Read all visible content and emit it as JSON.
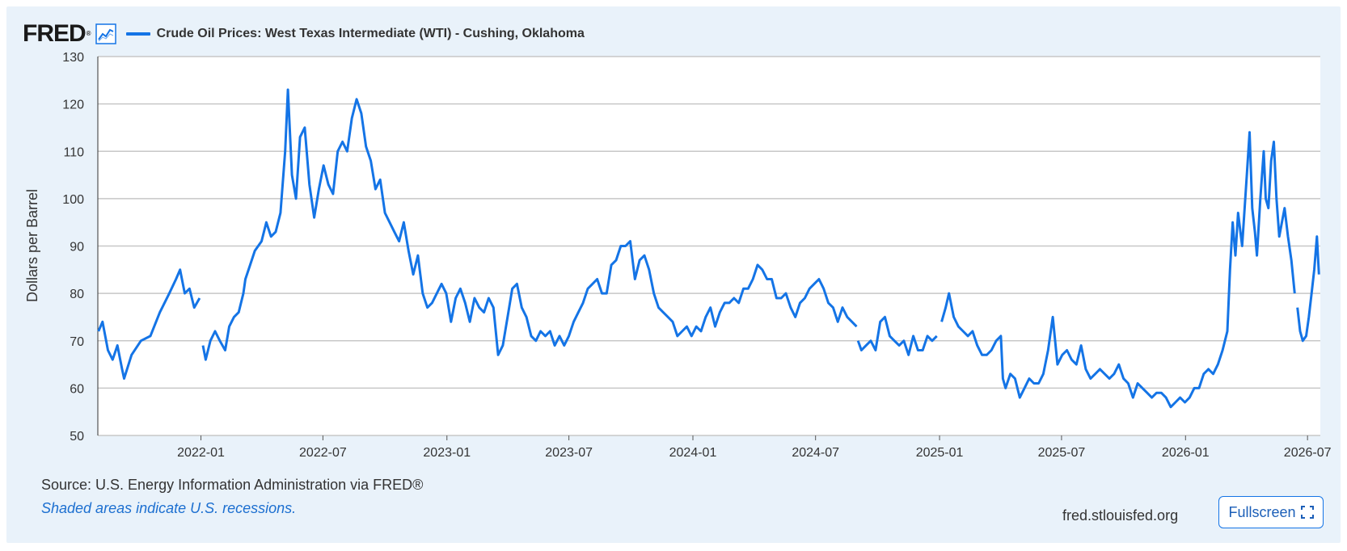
{
  "header": {
    "logo_text": "FRED",
    "logo_mark": "®",
    "graph_icon": "line-graph-icon",
    "series_title": "Crude Oil Prices: West Texas Intermediate (WTI) - Cushing, Oklahoma",
    "series_color": "#1474e6"
  },
  "footer": {
    "source": "Source: U.S. Energy Information Administration via FRED®",
    "recession_note": "Shaded areas indicate U.S. recessions.",
    "site": "fred.stlouisfed.org",
    "fullscreen_label": "Fullscreen",
    "fullscreen_icon": "expand-icon",
    "link_color": "#1c6fd0"
  },
  "chart_data": {
    "type": "line",
    "title": "Crude Oil Prices: West Texas Intermediate (WTI) - Cushing, Oklahoma",
    "xlabel": "",
    "ylabel": "Dollars per Barrel",
    "ylim": [
      50,
      130
    ],
    "xlim": [
      "2021-08-01",
      "2026-07-20"
    ],
    "yticks": [
      50,
      60,
      70,
      80,
      90,
      100,
      110,
      120,
      130
    ],
    "xticks": [
      "2022-01",
      "2022-07",
      "2023-01",
      "2023-07",
      "2024-01",
      "2024-07",
      "2025-01",
      "2025-07",
      "2026-01",
      "2026-07"
    ],
    "grid": true,
    "legend": "top-left",
    "series": [
      {
        "name": "Crude Oil Prices: West Texas Intermediate (WTI) - Cushing, Oklahoma",
        "color": "#1474e6",
        "points": [
          [
            "2021-08-02",
            72
          ],
          [
            "2021-08-08",
            74
          ],
          [
            "2021-08-16",
            68
          ],
          [
            "2021-08-23",
            66
          ],
          [
            "2021-08-30",
            69
          ],
          [
            "2021-09-06",
            64
          ],
          [
            "2021-09-09",
            62
          ],
          [
            "2021-09-20",
            67
          ],
          [
            "2021-10-04",
            70
          ],
          [
            "2021-10-18",
            71
          ],
          [
            "2021-11-01",
            76
          ],
          [
            "2021-11-15",
            80
          ],
          [
            "2021-11-25",
            83
          ],
          [
            "2021-12-01",
            85
          ],
          [
            "2021-12-08",
            80
          ],
          [
            "2021-12-15",
            81
          ],
          [
            "2021-12-22",
            77
          ],
          [
            "2021-12-30",
            79
          ],
          [
            null,
            null
          ],
          [
            "2022-01-04",
            69
          ],
          [
            "2022-01-08",
            66
          ],
          [
            "2022-01-15",
            70
          ],
          [
            "2022-01-22",
            72
          ],
          [
            "2022-01-29",
            70
          ],
          [
            "2022-02-06",
            68
          ],
          [
            "2022-02-12",
            73
          ],
          [
            "2022-02-19",
            75
          ],
          [
            "2022-02-26",
            76
          ],
          [
            "2022-03-05",
            80
          ],
          [
            "2022-03-08",
            83
          ],
          [
            "2022-03-15",
            86
          ],
          [
            "2022-03-22",
            89
          ],
          [
            "2022-04-01",
            91
          ],
          [
            "2022-04-08",
            95
          ],
          [
            "2022-04-15",
            92
          ],
          [
            "2022-04-22",
            93
          ],
          [
            "2022-04-29",
            97
          ],
          [
            "2022-05-06",
            110
          ],
          [
            "2022-05-10",
            123
          ],
          [
            "2022-05-16",
            105
          ],
          [
            "2022-05-22",
            100
          ],
          [
            "2022-05-28",
            113
          ],
          [
            "2022-06-04",
            115
          ],
          [
            "2022-06-11",
            103
          ],
          [
            "2022-06-18",
            96
          ],
          [
            "2022-06-25",
            102
          ],
          [
            "2022-07-02",
            107
          ],
          [
            "2022-07-09",
            103
          ],
          [
            "2022-07-16",
            101
          ],
          [
            "2022-07-23",
            110
          ],
          [
            "2022-07-30",
            112
          ],
          [
            "2022-08-06",
            110
          ],
          [
            "2022-08-13",
            117
          ],
          [
            "2022-08-20",
            121
          ],
          [
            "2022-08-27",
            118
          ],
          [
            "2022-09-03",
            111
          ],
          [
            "2022-09-10",
            108
          ],
          [
            "2022-09-17",
            102
          ],
          [
            "2022-09-24",
            104
          ],
          [
            "2022-10-01",
            97
          ],
          [
            "2022-10-08",
            95
          ],
          [
            "2022-10-15",
            93
          ],
          [
            "2022-10-22",
            91
          ],
          [
            "2022-10-29",
            95
          ],
          [
            "2022-11-05",
            89
          ],
          [
            "2022-11-12",
            84
          ],
          [
            "2022-11-19",
            88
          ],
          [
            "2022-11-26",
            80
          ],
          [
            "2022-12-03",
            77
          ],
          [
            "2022-12-10",
            78
          ],
          [
            "2022-12-17",
            80
          ],
          [
            "2022-12-24",
            82
          ],
          [
            "2022-12-31",
            80
          ],
          [
            "2023-01-07",
            74
          ],
          [
            "2023-01-14",
            79
          ],
          [
            "2023-01-21",
            81
          ],
          [
            "2023-01-28",
            78
          ],
          [
            "2023-02-04",
            74
          ],
          [
            "2023-02-11",
            79
          ],
          [
            "2023-02-18",
            77
          ],
          [
            "2023-02-25",
            76
          ],
          [
            "2023-03-04",
            79
          ],
          [
            "2023-03-11",
            77
          ],
          [
            "2023-03-18",
            67
          ],
          [
            "2023-03-25",
            69
          ],
          [
            "2023-04-01",
            75
          ],
          [
            "2023-04-08",
            81
          ],
          [
            "2023-04-15",
            82
          ],
          [
            "2023-04-22",
            77
          ],
          [
            "2023-04-29",
            75
          ],
          [
            "2023-05-06",
            71
          ],
          [
            "2023-05-13",
            70
          ],
          [
            "2023-05-20",
            72
          ],
          [
            "2023-05-27",
            71
          ],
          [
            "2023-06-03",
            72
          ],
          [
            "2023-06-10",
            69
          ],
          [
            "2023-06-17",
            71
          ],
          [
            "2023-06-24",
            69
          ],
          [
            "2023-07-01",
            71
          ],
          [
            "2023-07-08",
            74
          ],
          [
            "2023-07-15",
            76
          ],
          [
            "2023-07-22",
            78
          ],
          [
            "2023-07-29",
            81
          ],
          [
            "2023-08-05",
            82
          ],
          [
            "2023-08-12",
            83
          ],
          [
            "2023-08-19",
            80
          ],
          [
            "2023-08-26",
            80
          ],
          [
            "2023-09-02",
            86
          ],
          [
            "2023-09-09",
            87
          ],
          [
            "2023-09-16",
            90
          ],
          [
            "2023-09-23",
            90
          ],
          [
            "2023-09-30",
            91
          ],
          [
            "2023-10-07",
            83
          ],
          [
            "2023-10-14",
            87
          ],
          [
            "2023-10-21",
            88
          ],
          [
            "2023-10-28",
            85
          ],
          [
            "2023-11-04",
            80
          ],
          [
            "2023-11-11",
            77
          ],
          [
            "2023-11-18",
            76
          ],
          [
            "2023-11-25",
            75
          ],
          [
            "2023-12-02",
            74
          ],
          [
            "2023-12-09",
            71
          ],
          [
            "2023-12-16",
            72
          ],
          [
            "2023-12-23",
            73
          ],
          [
            "2023-12-30",
            71
          ],
          [
            "2024-01-06",
            73
          ],
          [
            "2024-01-13",
            72
          ],
          [
            "2024-01-20",
            75
          ],
          [
            "2024-01-27",
            77
          ],
          [
            "2024-02-03",
            73
          ],
          [
            "2024-02-10",
            76
          ],
          [
            "2024-02-17",
            78
          ],
          [
            "2024-02-24",
            78
          ],
          [
            "2024-03-02",
            79
          ],
          [
            "2024-03-09",
            78
          ],
          [
            "2024-03-16",
            81
          ],
          [
            "2024-03-23",
            81
          ],
          [
            "2024-03-30",
            83
          ],
          [
            "2024-04-06",
            86
          ],
          [
            "2024-04-13",
            85
          ],
          [
            "2024-04-20",
            83
          ],
          [
            "2024-04-27",
            83
          ],
          [
            "2024-05-04",
            79
          ],
          [
            "2024-05-11",
            79
          ],
          [
            "2024-05-18",
            80
          ],
          [
            "2024-05-25",
            77
          ],
          [
            "2024-06-01",
            75
          ],
          [
            "2024-06-08",
            78
          ],
          [
            "2024-06-15",
            79
          ],
          [
            "2024-06-22",
            81
          ],
          [
            "2024-06-29",
            82
          ],
          [
            "2024-07-06",
            83
          ],
          [
            "2024-07-13",
            81
          ],
          [
            "2024-07-20",
            78
          ],
          [
            "2024-07-27",
            77
          ],
          [
            "2024-08-03",
            74
          ],
          [
            "2024-08-10",
            77
          ],
          [
            "2024-08-17",
            75
          ],
          [
            "2024-08-24",
            74
          ],
          [
            "2024-08-31",
            73
          ],
          [
            null,
            null
          ],
          [
            "2024-09-02",
            70
          ],
          [
            "2024-09-07",
            68
          ],
          [
            "2024-09-14",
            69
          ],
          [
            "2024-09-21",
            70
          ],
          [
            "2024-09-28",
            68
          ],
          [
            "2024-10-05",
            74
          ],
          [
            "2024-10-12",
            75
          ],
          [
            "2024-10-19",
            71
          ],
          [
            "2024-10-26",
            70
          ],
          [
            "2024-11-02",
            69
          ],
          [
            "2024-11-09",
            70
          ],
          [
            "2024-11-16",
            67
          ],
          [
            "2024-11-23",
            71
          ],
          [
            "2024-11-30",
            68
          ],
          [
            "2024-12-07",
            68
          ],
          [
            "2024-12-14",
            71
          ],
          [
            "2024-12-21",
            70
          ],
          [
            "2024-12-28",
            71
          ],
          [
            null,
            null
          ],
          [
            "2025-01-04",
            74
          ],
          [
            "2025-01-10",
            77
          ],
          [
            "2025-01-15",
            80
          ],
          [
            "2025-01-22",
            75
          ],
          [
            "2025-01-29",
            73
          ],
          [
            "2025-02-05",
            72
          ],
          [
            "2025-02-12",
            71
          ],
          [
            "2025-02-19",
            72
          ],
          [
            "2025-02-26",
            69
          ],
          [
            "2025-03-05",
            67
          ],
          [
            "2025-03-12",
            67
          ],
          [
            "2025-03-19",
            68
          ],
          [
            "2025-03-26",
            70
          ],
          [
            "2025-04-02",
            71
          ],
          [
            "2025-04-05",
            62
          ],
          [
            "2025-04-09",
            60
          ],
          [
            "2025-04-16",
            63
          ],
          [
            "2025-04-23",
            62
          ],
          [
            "2025-04-30",
            58
          ],
          [
            "2025-05-07",
            60
          ],
          [
            "2025-05-14",
            62
          ],
          [
            "2025-05-21",
            61
          ],
          [
            "2025-05-28",
            61
          ],
          [
            "2025-06-04",
            63
          ],
          [
            "2025-06-11",
            68
          ],
          [
            "2025-06-18",
            75
          ],
          [
            "2025-06-25",
            65
          ],
          [
            "2025-07-02",
            67
          ],
          [
            "2025-07-09",
            68
          ],
          [
            "2025-07-16",
            66
          ],
          [
            "2025-07-23",
            65
          ],
          [
            "2025-07-30",
            69
          ],
          [
            "2025-08-06",
            64
          ],
          [
            "2025-08-13",
            62
          ],
          [
            "2025-08-20",
            63
          ],
          [
            "2025-08-27",
            64
          ],
          [
            "2025-09-03",
            63
          ],
          [
            "2025-09-10",
            62
          ],
          [
            "2025-09-17",
            63
          ],
          [
            "2025-09-24",
            65
          ],
          [
            "2025-10-01",
            62
          ],
          [
            "2025-10-08",
            61
          ],
          [
            "2025-10-15",
            58
          ],
          [
            "2025-10-22",
            61
          ],
          [
            "2025-10-29",
            60
          ],
          [
            "2025-11-05",
            59
          ],
          [
            "2025-11-12",
            58
          ],
          [
            "2025-11-19",
            59
          ],
          [
            "2025-11-26",
            59
          ],
          [
            "2025-12-03",
            58
          ],
          [
            "2025-12-10",
            56
          ],
          [
            "2025-12-17",
            57
          ],
          [
            "2025-12-24",
            58
          ],
          [
            "2025-12-31",
            57
          ],
          [
            "2026-01-07",
            58
          ],
          [
            "2026-01-14",
            60
          ],
          [
            "2026-01-21",
            60
          ],
          [
            "2026-01-28",
            63
          ],
          [
            "2026-02-04",
            64
          ],
          [
            "2026-02-11",
            63
          ],
          [
            "2026-02-18",
            65
          ],
          [
            "2026-02-25",
            68
          ],
          [
            "2026-03-04",
            72
          ],
          [
            "2026-03-08",
            85
          ],
          [
            "2026-03-12",
            95
          ],
          [
            "2026-03-16",
            88
          ],
          [
            "2026-03-20",
            97
          ],
          [
            "2026-03-26",
            90
          ],
          [
            "2026-04-02",
            105
          ],
          [
            "2026-04-06",
            114
          ],
          [
            "2026-04-10",
            98
          ],
          [
            "2026-04-14",
            93
          ],
          [
            "2026-04-17",
            88
          ],
          [
            "2026-04-22",
            100
          ],
          [
            "2026-04-27",
            110
          ],
          [
            "2026-04-30",
            100
          ],
          [
            "2026-05-04",
            98
          ],
          [
            "2026-05-08",
            108
          ],
          [
            "2026-05-12",
            112
          ],
          [
            "2026-05-16",
            100
          ],
          [
            "2026-05-20",
            92
          ],
          [
            "2026-05-24",
            95
          ],
          [
            "2026-05-28",
            98
          ],
          [
            "2026-06-02",
            92
          ],
          [
            "2026-06-07",
            87
          ],
          [
            "2026-06-12",
            80
          ],
          [
            null,
            null
          ],
          [
            "2026-06-16",
            77
          ],
          [
            "2026-06-20",
            72
          ],
          [
            "2026-06-24",
            70
          ],
          [
            "2026-06-29",
            71
          ],
          [
            "2026-07-03",
            75
          ],
          [
            "2026-07-07",
            80
          ],
          [
            "2026-07-11",
            85
          ],
          [
            "2026-07-15",
            92
          ],
          [
            "2026-07-18",
            84
          ]
        ]
      }
    ]
  }
}
